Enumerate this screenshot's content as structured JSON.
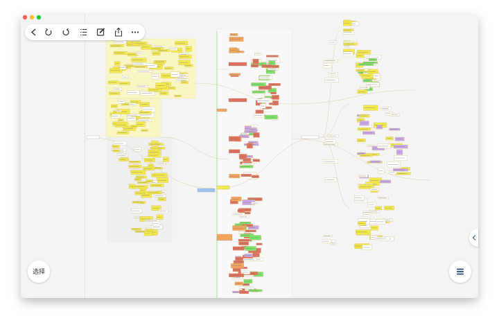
{
  "buttons": {
    "select": "选择"
  }
}
